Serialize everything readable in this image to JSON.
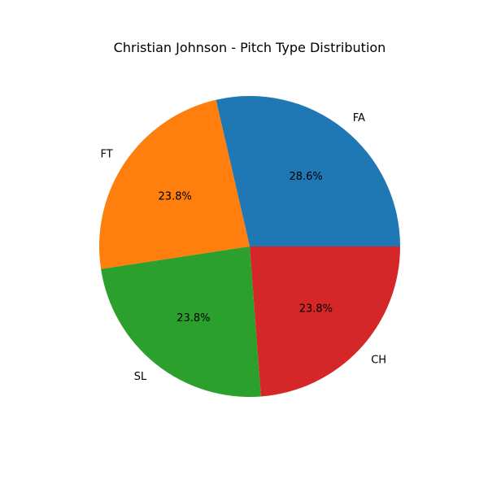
{
  "chart_data": {
    "type": "pie",
    "title": "Christian Johnson - Pitch Type Distribution",
    "categories": [
      "FA",
      "FT",
      "SL",
      "CH"
    ],
    "values": [
      28.6,
      23.8,
      23.8,
      23.8
    ],
    "value_labels": [
      "28.6%",
      "23.8%",
      "23.8%",
      "23.8%"
    ],
    "colors": [
      "#1f77b4",
      "#ff7f0e",
      "#2ca02c",
      "#d62728"
    ],
    "start_angle_deg": 0,
    "direction": "counterclockwise",
    "legend": "none"
  }
}
